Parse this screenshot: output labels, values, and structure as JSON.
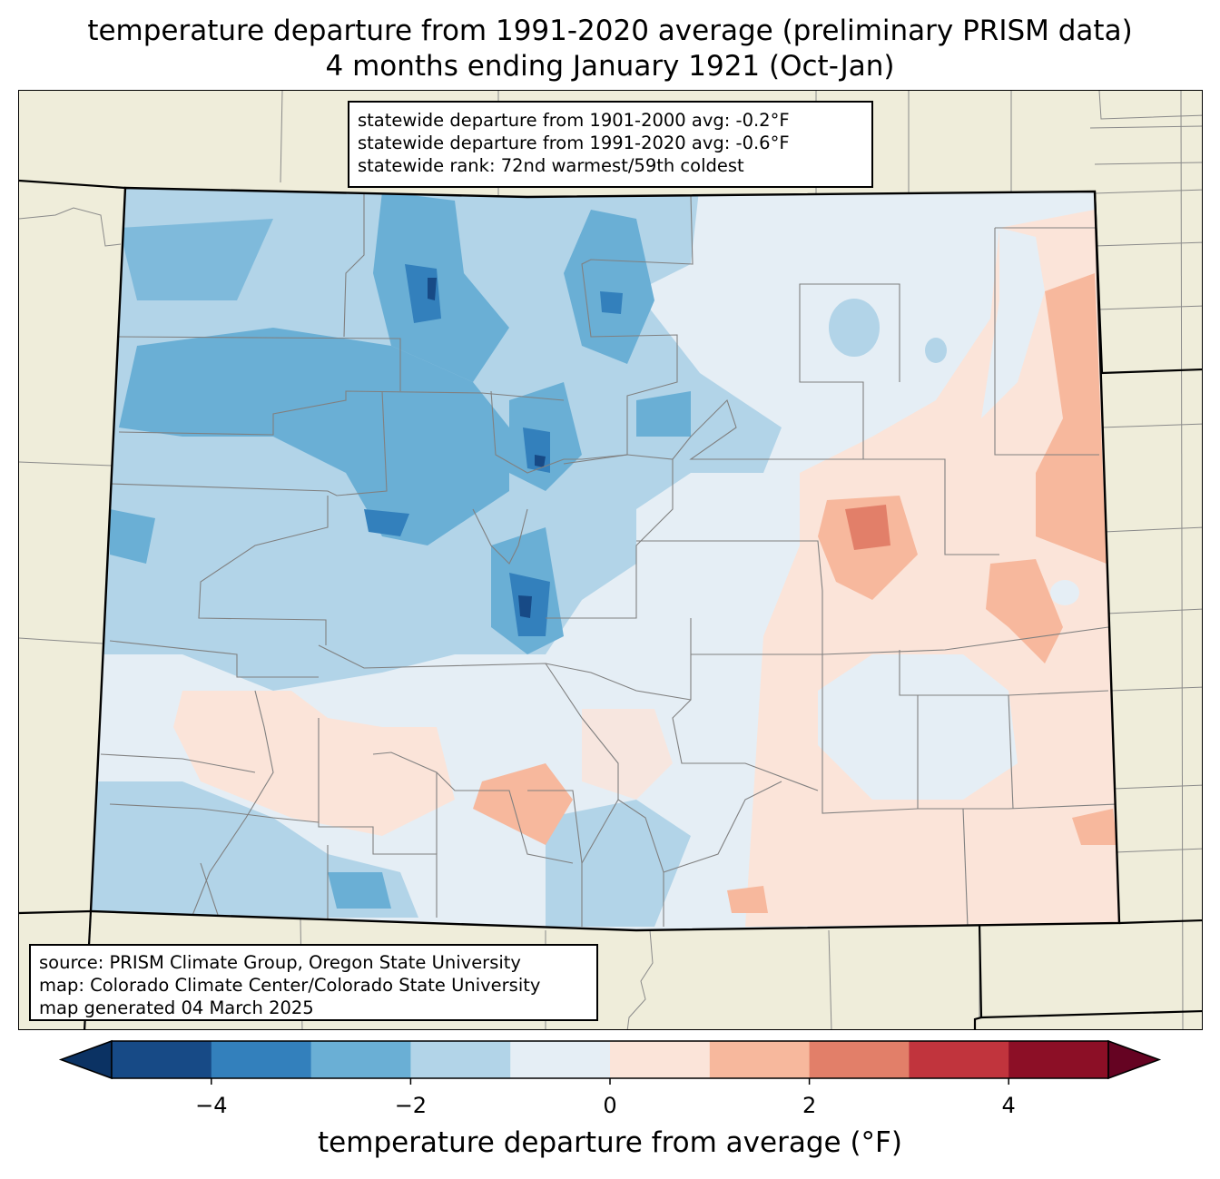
{
  "title": {
    "line1": "temperature departure from 1991-2020 average (preliminary PRISM data)",
    "line2": "4 months ending January 1921 (Oct-Jan)"
  },
  "stats": {
    "line1": "statewide departure from 1901-2000 avg: -0.2°F",
    "line2": "statewide departure from 1991-2020 avg: -0.6°F",
    "line3": "statewide rank: 72nd warmest/59th coldest"
  },
  "source": {
    "line1": "source: PRISM Climate Group, Oregon State University",
    "line2": "map: Colorado Climate Center/Colorado State University",
    "line3": "map generated 04 March 2025"
  },
  "colorbar": {
    "label": "temperature departure from average (°F)",
    "range": [
      -5,
      5
    ],
    "step": 1,
    "extend": "both",
    "ticks": [
      "−4",
      "−2",
      "0",
      "2",
      "4"
    ],
    "tick_values": [
      -4,
      -2,
      0,
      2,
      4
    ],
    "colors": [
      "#0b3263",
      "#174a86",
      "#3380bc",
      "#6aafd5",
      "#b2d4e8",
      "#e5eef5",
      "#fbe4d9",
      "#f7b89d",
      "#e27f69",
      "#c1343d",
      "#8c0f26",
      "#650322"
    ]
  },
  "map": {
    "land_color": "#efedda",
    "state_border_color": "#000000",
    "county_border_color": "#808080"
  }
}
